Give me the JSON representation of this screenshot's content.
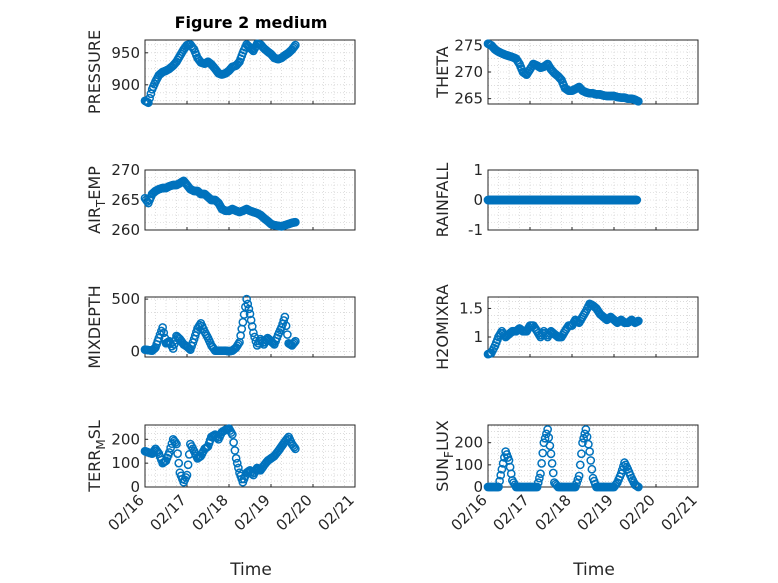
{
  "figure": {
    "title": "Figure 2 medium",
    "xlabel": "Time",
    "colors": {
      "marker": "#0072BD",
      "axis": "#262626",
      "grid": "#c8c8c8"
    }
  },
  "chart_data": [
    {
      "type": "scatter",
      "panel": "pressure",
      "ylabel": "PRESSURE",
      "ylabel_sub": null,
      "ylim": [
        870,
        970
      ],
      "yticks": [
        900,
        950
      ],
      "xlim": [
        0,
        5
      ],
      "xticks": [
        "02/16",
        "02/17",
        "02/18",
        "02/19",
        "02/20",
        "02/21"
      ],
      "grid": true,
      "points_per_day": 24,
      "points": [
        [
          0.0,
          875
        ],
        [
          0.08,
          872
        ],
        [
          0.17,
          893
        ],
        [
          0.25,
          905
        ],
        [
          0.33,
          915
        ],
        [
          0.42,
          920
        ],
        [
          0.5,
          922
        ],
        [
          0.58,
          925
        ],
        [
          0.67,
          930
        ],
        [
          0.75,
          936
        ],
        [
          0.83,
          945
        ],
        [
          0.92,
          955
        ],
        [
          1.0,
          962
        ],
        [
          1.08,
          963
        ],
        [
          1.17,
          955
        ],
        [
          1.25,
          942
        ],
        [
          1.33,
          935
        ],
        [
          1.42,
          933
        ],
        [
          1.5,
          936
        ],
        [
          1.58,
          932
        ],
        [
          1.67,
          925
        ],
        [
          1.75,
          918
        ],
        [
          1.83,
          916
        ],
        [
          1.92,
          918
        ],
        [
          2.0,
          922
        ],
        [
          2.08,
          928
        ],
        [
          2.17,
          930
        ],
        [
          2.25,
          936
        ],
        [
          2.33,
          950
        ],
        [
          2.42,
          963
        ],
        [
          2.5,
          958
        ],
        [
          2.58,
          953
        ],
        [
          2.67,
          964
        ],
        [
          2.75,
          963
        ],
        [
          2.83,
          957
        ],
        [
          2.92,
          952
        ],
        [
          3.0,
          948
        ],
        [
          3.08,
          942
        ],
        [
          3.17,
          940
        ],
        [
          3.25,
          942
        ],
        [
          3.33,
          946
        ],
        [
          3.42,
          950
        ],
        [
          3.5,
          955
        ],
        [
          3.58,
          962
        ]
      ]
    },
    {
      "type": "scatter",
      "panel": "theta",
      "ylabel": "THETA",
      "ylabel_sub": null,
      "ylim": [
        264,
        276
      ],
      "yticks": [
        265,
        270,
        275
      ],
      "xlim": [
        0,
        5
      ],
      "xticks": [
        "02/16",
        "02/17",
        "02/18",
        "02/19",
        "02/20",
        "02/21"
      ],
      "grid": true,
      "points": [
        [
          0.0,
          275.3
        ],
        [
          0.08,
          275.0
        ],
        [
          0.17,
          274.2
        ],
        [
          0.25,
          273.8
        ],
        [
          0.33,
          273.5
        ],
        [
          0.42,
          273.2
        ],
        [
          0.5,
          273.0
        ],
        [
          0.58,
          272.8
        ],
        [
          0.67,
          272.5
        ],
        [
          0.75,
          271.5
        ],
        [
          0.83,
          270.0
        ],
        [
          0.92,
          269.5
        ],
        [
          1.0,
          270.5
        ],
        [
          1.08,
          271.5
        ],
        [
          1.17,
          271.2
        ],
        [
          1.25,
          270.8
        ],
        [
          1.33,
          271.0
        ],
        [
          1.42,
          271.5
        ],
        [
          1.5,
          270.5
        ],
        [
          1.58,
          269.8
        ],
        [
          1.67,
          269.2
        ],
        [
          1.75,
          268.5
        ],
        [
          1.83,
          267.0
        ],
        [
          1.92,
          266.5
        ],
        [
          2.0,
          266.5
        ],
        [
          2.08,
          266.8
        ],
        [
          2.17,
          267.2
        ],
        [
          2.25,
          266.5
        ],
        [
          2.33,
          266.2
        ],
        [
          2.42,
          266.0
        ],
        [
          2.5,
          266.0
        ],
        [
          2.58,
          265.8
        ],
        [
          2.67,
          265.8
        ],
        [
          2.75,
          265.6
        ],
        [
          2.83,
          265.5
        ],
        [
          2.92,
          265.5
        ],
        [
          3.0,
          265.5
        ],
        [
          3.08,
          265.3
        ],
        [
          3.17,
          265.2
        ],
        [
          3.25,
          265.2
        ],
        [
          3.33,
          265.0
        ],
        [
          3.42,
          265.0
        ],
        [
          3.5,
          264.8
        ],
        [
          3.58,
          264.5
        ]
      ]
    },
    {
      "type": "scatter",
      "panel": "air_temp",
      "ylabel": "AIR",
      "ylabel_sub": "T",
      "ylabel_post": "EMP",
      "ylim": [
        260,
        270
      ],
      "yticks": [
        260,
        265,
        270
      ],
      "xlim": [
        0,
        5
      ],
      "xticks": [
        "02/16",
        "02/17",
        "02/18",
        "02/19",
        "02/20",
        "02/21"
      ],
      "grid": true,
      "points": [
        [
          0.0,
          265.3
        ],
        [
          0.08,
          264.5
        ],
        [
          0.17,
          266.0
        ],
        [
          0.25,
          266.5
        ],
        [
          0.33,
          266.8
        ],
        [
          0.42,
          267.0
        ],
        [
          0.5,
          267.0
        ],
        [
          0.58,
          267.3
        ],
        [
          0.67,
          267.5
        ],
        [
          0.75,
          267.5
        ],
        [
          0.83,
          267.8
        ],
        [
          0.92,
          268.2
        ],
        [
          1.0,
          267.5
        ],
        [
          1.08,
          266.8
        ],
        [
          1.17,
          266.5
        ],
        [
          1.25,
          266.5
        ],
        [
          1.33,
          266.0
        ],
        [
          1.42,
          266.0
        ],
        [
          1.5,
          265.5
        ],
        [
          1.58,
          265.0
        ],
        [
          1.67,
          265.0
        ],
        [
          1.75,
          264.5
        ],
        [
          1.83,
          263.5
        ],
        [
          1.92,
          263.2
        ],
        [
          2.0,
          263.2
        ],
        [
          2.08,
          263.5
        ],
        [
          2.17,
          263.2
        ],
        [
          2.25,
          263.0
        ],
        [
          2.33,
          263.2
        ],
        [
          2.42,
          263.5
        ],
        [
          2.5,
          263.2
        ],
        [
          2.58,
          263.0
        ],
        [
          2.67,
          262.8
        ],
        [
          2.75,
          262.5
        ],
        [
          2.83,
          262.0
        ],
        [
          2.92,
          261.5
        ],
        [
          3.0,
          261.0
        ],
        [
          3.08,
          260.8
        ],
        [
          3.17,
          260.7
        ],
        [
          3.25,
          260.6
        ],
        [
          3.33,
          260.8
        ],
        [
          3.42,
          261.0
        ],
        [
          3.5,
          261.2
        ],
        [
          3.58,
          261.3
        ]
      ]
    },
    {
      "type": "scatter",
      "panel": "rainfall",
      "ylabel": "RAINFALL",
      "ylabel_sub": null,
      "ylim": [
        -1,
        1
      ],
      "yticks": [
        -1,
        0,
        1
      ],
      "xlim": [
        0,
        5
      ],
      "xticks": [
        "02/16",
        "02/17",
        "02/18",
        "02/19",
        "02/20",
        "02/21"
      ],
      "grid": true,
      "constant_value": 0,
      "x_range": [
        0,
        3.58
      ]
    },
    {
      "type": "scatter",
      "panel": "mixdepth",
      "ylabel": "MIXDEPTH",
      "ylabel_sub": null,
      "ylim": [
        -50,
        520
      ],
      "yticks": [
        0,
        500
      ],
      "xlim": [
        0,
        5
      ],
      "xticks": [
        "02/16",
        "02/17",
        "02/18",
        "02/19",
        "02/20",
        "02/21"
      ],
      "grid": true,
      "points": [
        [
          0.0,
          20
        ],
        [
          0.08,
          15
        ],
        [
          0.17,
          10
        ],
        [
          0.25,
          40
        ],
        [
          0.33,
          130
        ],
        [
          0.42,
          230
        ],
        [
          0.5,
          80
        ],
        [
          0.58,
          100
        ],
        [
          0.67,
          30
        ],
        [
          0.75,
          150
        ],
        [
          0.83,
          120
        ],
        [
          0.92,
          70
        ],
        [
          1.0,
          50
        ],
        [
          1.08,
          20
        ],
        [
          1.17,
          120
        ],
        [
          1.25,
          220
        ],
        [
          1.33,
          270
        ],
        [
          1.42,
          190
        ],
        [
          1.5,
          130
        ],
        [
          1.58,
          60
        ],
        [
          1.67,
          10
        ],
        [
          1.75,
          10
        ],
        [
          1.83,
          10
        ],
        [
          1.92,
          10
        ],
        [
          2.0,
          5
        ],
        [
          2.08,
          10
        ],
        [
          2.17,
          40
        ],
        [
          2.25,
          90
        ],
        [
          2.33,
          280
        ],
        [
          2.42,
          500
        ],
        [
          2.5,
          360
        ],
        [
          2.58,
          180
        ],
        [
          2.67,
          60
        ],
        [
          2.75,
          120
        ],
        [
          2.83,
          70
        ],
        [
          2.92,
          130
        ],
        [
          3.0,
          100
        ],
        [
          3.08,
          70
        ],
        [
          3.17,
          160
        ],
        [
          3.25,
          230
        ],
        [
          3.33,
          330
        ],
        [
          3.42,
          80
        ],
        [
          3.5,
          60
        ],
        [
          3.58,
          100
        ]
      ]
    },
    {
      "type": "scatter",
      "panel": "h2omixra",
      "ylabel": "H2OMIXRA",
      "ylabel_sub": null,
      "ylim": [
        0.65,
        1.7
      ],
      "yticks": [
        1,
        1.5
      ],
      "xlim": [
        0,
        5
      ],
      "xticks": [
        "02/16",
        "02/17",
        "02/18",
        "02/19",
        "02/20",
        "02/21"
      ],
      "grid": true,
      "points": [
        [
          0.0,
          0.7
        ],
        [
          0.08,
          0.72
        ],
        [
          0.17,
          0.85
        ],
        [
          0.25,
          1.0
        ],
        [
          0.33,
          1.1
        ],
        [
          0.42,
          1.0
        ],
        [
          0.5,
          1.05
        ],
        [
          0.58,
          1.1
        ],
        [
          0.67,
          1.1
        ],
        [
          0.75,
          1.15
        ],
        [
          0.83,
          1.1
        ],
        [
          0.92,
          1.1
        ],
        [
          1.0,
          1.2
        ],
        [
          1.08,
          1.2
        ],
        [
          1.17,
          1.1
        ],
        [
          1.25,
          1.0
        ],
        [
          1.33,
          1.1
        ],
        [
          1.42,
          1.0
        ],
        [
          1.5,
          1.1
        ],
        [
          1.58,
          1.05
        ],
        [
          1.67,
          1.0
        ],
        [
          1.75,
          1.0
        ],
        [
          1.83,
          1.1
        ],
        [
          1.92,
          1.2
        ],
        [
          2.0,
          1.2
        ],
        [
          2.08,
          1.3
        ],
        [
          2.17,
          1.25
        ],
        [
          2.25,
          1.35
        ],
        [
          2.33,
          1.45
        ],
        [
          2.42,
          1.58
        ],
        [
          2.5,
          1.55
        ],
        [
          2.58,
          1.5
        ],
        [
          2.67,
          1.4
        ],
        [
          2.75,
          1.35
        ],
        [
          2.83,
          1.3
        ],
        [
          2.92,
          1.35
        ],
        [
          3.0,
          1.3
        ],
        [
          3.08,
          1.25
        ],
        [
          3.17,
          1.3
        ],
        [
          3.25,
          1.25
        ],
        [
          3.33,
          1.25
        ],
        [
          3.42,
          1.3
        ],
        [
          3.5,
          1.25
        ],
        [
          3.58,
          1.28
        ]
      ]
    },
    {
      "type": "scatter",
      "panel": "terr_msl",
      "ylabel": "TERR",
      "ylabel_sub": "M",
      "ylabel_post": "SL",
      "ylim": [
        0,
        260
      ],
      "yticks": [
        0,
        100,
        200
      ],
      "xlim": [
        0,
        5
      ],
      "xticks": [
        "02/16",
        "02/17",
        "02/18",
        "02/19",
        "02/20",
        "02/21"
      ],
      "grid": true,
      "points": [
        [
          0.0,
          150
        ],
        [
          0.08,
          145
        ],
        [
          0.17,
          140
        ],
        [
          0.25,
          160
        ],
        [
          0.33,
          140
        ],
        [
          0.42,
          100
        ],
        [
          0.5,
          110
        ],
        [
          0.58,
          145
        ],
        [
          0.67,
          200
        ],
        [
          0.75,
          180
        ],
        [
          0.83,
          60
        ],
        [
          0.92,
          20
        ],
        [
          1.0,
          50
        ],
        [
          1.08,
          180
        ],
        [
          1.17,
          150
        ],
        [
          1.25,
          120
        ],
        [
          1.33,
          130
        ],
        [
          1.42,
          160
        ],
        [
          1.5,
          170
        ],
        [
          1.58,
          210
        ],
        [
          1.67,
          220
        ],
        [
          1.75,
          200
        ],
        [
          1.83,
          230
        ],
        [
          1.92,
          240
        ],
        [
          2.0,
          245
        ],
        [
          2.08,
          220
        ],
        [
          2.17,
          120
        ],
        [
          2.25,
          60
        ],
        [
          2.33,
          20
        ],
        [
          2.42,
          60
        ],
        [
          2.5,
          70
        ],
        [
          2.58,
          50
        ],
        [
          2.67,
          80
        ],
        [
          2.75,
          70
        ],
        [
          2.83,
          90
        ],
        [
          2.92,
          110
        ],
        [
          3.0,
          120
        ],
        [
          3.08,
          130
        ],
        [
          3.17,
          150
        ],
        [
          3.25,
          170
        ],
        [
          3.33,
          190
        ],
        [
          3.42,
          210
        ],
        [
          3.5,
          180
        ],
        [
          3.58,
          160
        ]
      ]
    },
    {
      "type": "scatter",
      "panel": "sun_flux",
      "ylabel": "SUN",
      "ylabel_sub": "F",
      "ylabel_post": "LUX",
      "ylim": [
        0,
        280
      ],
      "yticks": [
        0,
        100,
        200
      ],
      "xlim": [
        0,
        5
      ],
      "xticks": [
        "02/16",
        "02/17",
        "02/18",
        "02/19",
        "02/20",
        "02/21"
      ],
      "grid": true,
      "points": [
        [
          0.0,
          0
        ],
        [
          0.08,
          0
        ],
        [
          0.17,
          0
        ],
        [
          0.25,
          0
        ],
        [
          0.33,
          80
        ],
        [
          0.42,
          160
        ],
        [
          0.5,
          120
        ],
        [
          0.58,
          30
        ],
        [
          0.67,
          0
        ],
        [
          0.75,
          0
        ],
        [
          0.83,
          0
        ],
        [
          0.92,
          0
        ],
        [
          1.0,
          0
        ],
        [
          1.08,
          0
        ],
        [
          1.17,
          0
        ],
        [
          1.25,
          60
        ],
        [
          1.33,
          200
        ],
        [
          1.42,
          260
        ],
        [
          1.5,
          150
        ],
        [
          1.58,
          20
        ],
        [
          1.67,
          0
        ],
        [
          1.75,
          0
        ],
        [
          1.83,
          0
        ],
        [
          1.92,
          0
        ],
        [
          2.0,
          0
        ],
        [
          2.08,
          0
        ],
        [
          2.17,
          50
        ],
        [
          2.25,
          200
        ],
        [
          2.33,
          260
        ],
        [
          2.42,
          160
        ],
        [
          2.5,
          40
        ],
        [
          2.58,
          0
        ],
        [
          2.67,
          0
        ],
        [
          2.75,
          0
        ],
        [
          2.83,
          0
        ],
        [
          2.92,
          0
        ],
        [
          3.0,
          0
        ],
        [
          3.08,
          20
        ],
        [
          3.17,
          60
        ],
        [
          3.25,
          110
        ],
        [
          3.33,
          80
        ],
        [
          3.42,
          40
        ],
        [
          3.5,
          10
        ],
        [
          3.58,
          0
        ]
      ]
    }
  ]
}
